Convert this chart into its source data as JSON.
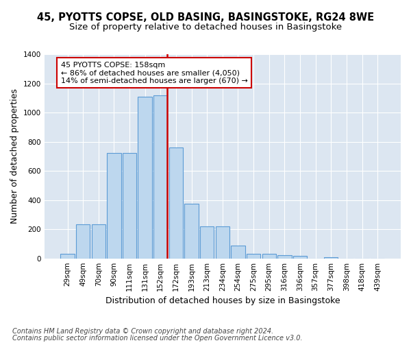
{
  "title_line1": "45, PYOTTS COPSE, OLD BASING, BASINGSTOKE, RG24 8WE",
  "title_line2": "Size of property relative to detached houses in Basingstoke",
  "xlabel": "Distribution of detached houses by size in Basingstoke",
  "ylabel": "Number of detached properties",
  "footnote1": "Contains HM Land Registry data © Crown copyright and database right 2024.",
  "footnote2": "Contains public sector information licensed under the Open Government Licence v3.0.",
  "annotation_line1": "45 PYOTTS COPSE: 158sqm",
  "annotation_line2": "← 86% of detached houses are smaller (4,050)",
  "annotation_line3": "14% of semi-detached houses are larger (670) →",
  "categories": [
    "29sqm",
    "49sqm",
    "70sqm",
    "90sqm",
    "111sqm",
    "131sqm",
    "152sqm",
    "172sqm",
    "193sqm",
    "213sqm",
    "234sqm",
    "254sqm",
    "275sqm",
    "295sqm",
    "316sqm",
    "336sqm",
    "357sqm",
    "377sqm",
    "398sqm",
    "418sqm",
    "439sqm"
  ],
  "values": [
    30,
    235,
    235,
    725,
    725,
    1110,
    1120,
    760,
    375,
    220,
    220,
    90,
    30,
    30,
    20,
    15,
    0,
    10,
    0,
    0,
    0
  ],
  "bar_color": "#bdd7ee",
  "bar_edge_color": "#5b9bd5",
  "vline_color": "#cc0000",
  "annotation_box_color": "#cc0000",
  "background_color": "#dce6f1",
  "ylim": [
    0,
    1400
  ],
  "yticks": [
    0,
    200,
    400,
    600,
    800,
    1000,
    1200,
    1400
  ],
  "grid_color": "#ffffff",
  "title_fontsize": 10.5,
  "subtitle_fontsize": 9.5,
  "axis_label_fontsize": 9,
  "tick_fontsize": 7.5,
  "annotation_fontsize": 8,
  "footnote_fontsize": 7
}
